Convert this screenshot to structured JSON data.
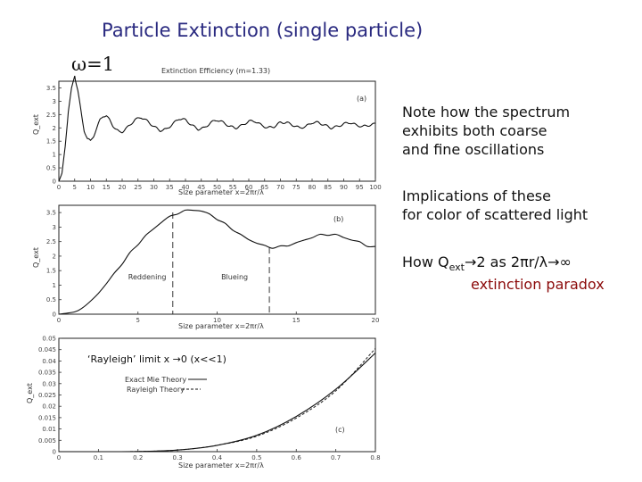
{
  "slide": {
    "title": "Particle Extinction (single particle)",
    "omega_label": "ω=1",
    "note_1": "Note how the spectrum\nexhibits both coarse\nand fine oscillations",
    "note_2": "Implications of these\nfor color of scattered light",
    "note_3_prefix": "How Q",
    "note_3_sub": "ext",
    "note_3_suffix": "→2 as 2πr/λ→∞",
    "note_4": "extinction paradox"
  },
  "colors": {
    "title": "#2a2a80",
    "paradox": "#8b0a0a"
  },
  "chart_data": [
    {
      "type": "line",
      "panel_label": "(a)",
      "title": "Extinction Efficiency (m=1.33)",
      "xlabel": "Size parameter  x=2πr/λ",
      "ylabel": "Q_ext",
      "xlim": [
        0,
        100
      ],
      "ylim": [
        0,
        3.75
      ],
      "xticks": [
        0,
        5,
        10,
        15,
        20,
        25,
        30,
        35,
        40,
        45,
        50,
        55,
        60,
        65,
        70,
        75,
        80,
        85,
        90,
        95,
        100
      ],
      "yticks": [
        0,
        0.5,
        1,
        1.5,
        2,
        2.5,
        3,
        3.5
      ],
      "series": [
        {
          "x": [
            0,
            1,
            2,
            3,
            4,
            5,
            6,
            7,
            8,
            9,
            10,
            11,
            12,
            13,
            14,
            15,
            16,
            17,
            18,
            19,
            20,
            22,
            24,
            26,
            28,
            30,
            32,
            34,
            36,
            38,
            40,
            42,
            44,
            46,
            48,
            50,
            52,
            54,
            56,
            58,
            60,
            62,
            64,
            66,
            68,
            70,
            72,
            74,
            76,
            78,
            80,
            82,
            84,
            86,
            88,
            90,
            92,
            94,
            96,
            98,
            100
          ],
          "y": [
            0,
            0.3,
            1.3,
            2.6,
            3.5,
            3.95,
            3.4,
            2.6,
            1.9,
            1.6,
            1.5,
            1.7,
            2.0,
            2.3,
            2.45,
            2.45,
            2.3,
            2.1,
            1.95,
            1.85,
            1.85,
            2.05,
            2.3,
            2.4,
            2.25,
            2.05,
            1.9,
            1.95,
            2.15,
            2.35,
            2.3,
            2.1,
            1.95,
            2.0,
            2.2,
            2.3,
            2.2,
            2.05,
            2.0,
            2.1,
            2.25,
            2.25,
            2.1,
            2.0,
            2.05,
            2.2,
            2.2,
            2.1,
            2.0,
            2.05,
            2.2,
            2.2,
            2.1,
            2.0,
            2.05,
            2.15,
            2.2,
            2.1,
            2.05,
            2.1,
            2.15
          ]
        }
      ]
    },
    {
      "type": "line",
      "panel_label": "(b)",
      "xlabel": "Size parameter  x=2πr/λ",
      "ylabel": "Q_ext",
      "xlim": [
        0,
        20
      ],
      "ylim": [
        0,
        3.75
      ],
      "xticks": [
        0,
        5,
        10,
        15,
        20
      ],
      "yticks": [
        0,
        0.5,
        1,
        1.5,
        2,
        2.5,
        3,
        3.5
      ],
      "series": [
        {
          "x": [
            0,
            1,
            1.5,
            2,
            2.5,
            3,
            3.5,
            4,
            4.5,
            5,
            5.5,
            6,
            6.5,
            7,
            7.5,
            8,
            8.5,
            9,
            9.5,
            10,
            10.5,
            11,
            11.5,
            12,
            12.5,
            13,
            13.5,
            14,
            14.5,
            15,
            15.5,
            16,
            16.5,
            17,
            17.5,
            18,
            18.5,
            19,
            19.5,
            20
          ],
          "y": [
            0,
            0.08,
            0.22,
            0.45,
            0.72,
            1.05,
            1.4,
            1.75,
            2.1,
            2.42,
            2.7,
            2.95,
            3.18,
            3.35,
            3.48,
            3.55,
            3.6,
            3.54,
            3.45,
            3.28,
            3.1,
            2.92,
            2.72,
            2.58,
            2.45,
            2.35,
            2.3,
            2.32,
            2.38,
            2.45,
            2.55,
            2.65,
            2.72,
            2.75,
            2.72,
            2.66,
            2.55,
            2.48,
            2.36,
            2.3
          ]
        }
      ],
      "markers": [
        {
          "x": 7.2,
          "text": "Reddening"
        },
        {
          "x": 13.3,
          "text": "Blueing"
        }
      ]
    },
    {
      "type": "line",
      "panel_label": "(c)",
      "xlabel": "Size parameter  x=2πr/λ",
      "ylabel": "Q_ext",
      "xlim": [
        0,
        0.8
      ],
      "ylim": [
        0,
        0.05
      ],
      "xticks": [
        0,
        0.1,
        0.2,
        0.3,
        0.4,
        0.5,
        0.6,
        0.7,
        0.8
      ],
      "yticks": [
        0,
        0.005,
        0.01,
        0.015,
        0.02,
        0.025,
        0.03,
        0.035,
        0.04,
        0.045,
        0.05
      ],
      "legend": [
        "Exact Mie Theory",
        "Rayleigh Theory"
      ],
      "annotation": "‘Rayleigh’ limit  x →0 (x<<1)",
      "series": [
        {
          "name": "Exact Mie Theory",
          "x": [
            0,
            0.1,
            0.2,
            0.3,
            0.4,
            0.5,
            0.6,
            0.7,
            0.8
          ],
          "y": [
            0,
            3e-06,
            9e-05,
            0.0007,
            0.0028,
            0.0072,
            0.0155,
            0.0275,
            0.0435
          ]
        },
        {
          "name": "Rayleigh Theory",
          "x": [
            0,
            0.1,
            0.2,
            0.3,
            0.4,
            0.5,
            0.6,
            0.7,
            0.8
          ],
          "y": [
            0,
            3e-06,
            9e-05,
            0.0007,
            0.0028,
            0.0068,
            0.0148,
            0.0268,
            0.0455
          ]
        }
      ]
    }
  ]
}
